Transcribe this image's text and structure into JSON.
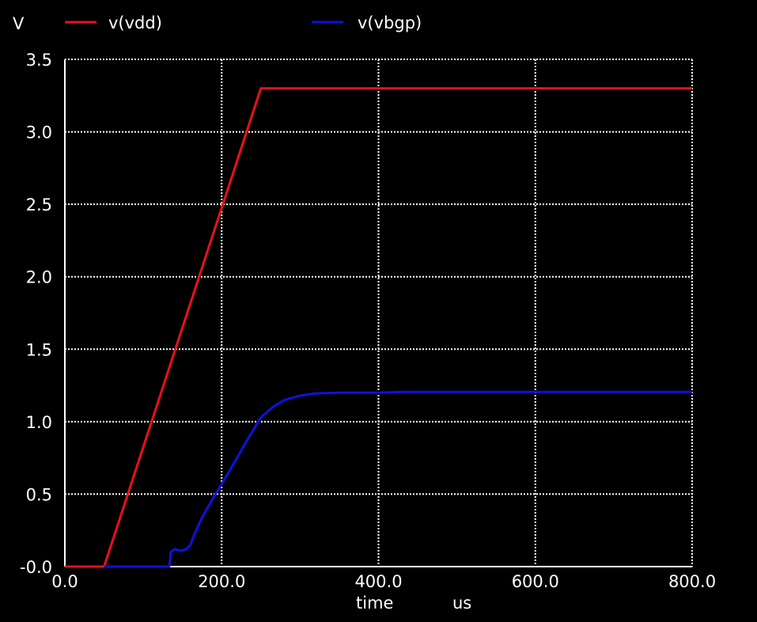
{
  "chart_data": {
    "type": "line",
    "ylabel": "V",
    "xlabel": "time",
    "xunit": "us",
    "xlim": [
      0,
      800
    ],
    "ylim": [
      0,
      3.5
    ],
    "xticks": [
      0,
      200,
      400,
      600,
      800
    ],
    "xtick_labels": [
      "0.0",
      "200.0",
      "400.0",
      "600.0",
      "800.0"
    ],
    "yticks": [
      0,
      0.5,
      1.0,
      1.5,
      2.0,
      2.5,
      3.0,
      3.5
    ],
    "ytick_labels": [
      "-0.0",
      "0.5",
      "1.0",
      "1.5",
      "2.0",
      "2.5",
      "3.0",
      "3.5"
    ],
    "grid": true,
    "legend_position": "top",
    "series": [
      {
        "name": "v(vdd)",
        "color": "#e8101c",
        "x": [
          0,
          50,
          250,
          800
        ],
        "y": [
          0,
          0,
          3.3,
          3.3
        ]
      },
      {
        "name": "v(vbgp)",
        "color": "#1010e0",
        "x": [
          50,
          133,
          134,
          135,
          140,
          148,
          155,
          160,
          165,
          175,
          190,
          210,
          230,
          250,
          265,
          280,
          300,
          320,
          350,
          400,
          430,
          500,
          800
        ],
        "y": [
          0,
          0,
          0.03,
          0.1,
          0.12,
          0.11,
          0.12,
          0.15,
          0.22,
          0.34,
          0.48,
          0.66,
          0.85,
          1.03,
          1.1,
          1.15,
          1.18,
          1.195,
          1.2,
          1.2,
          1.205,
          1.205,
          1.205
        ]
      }
    ]
  }
}
